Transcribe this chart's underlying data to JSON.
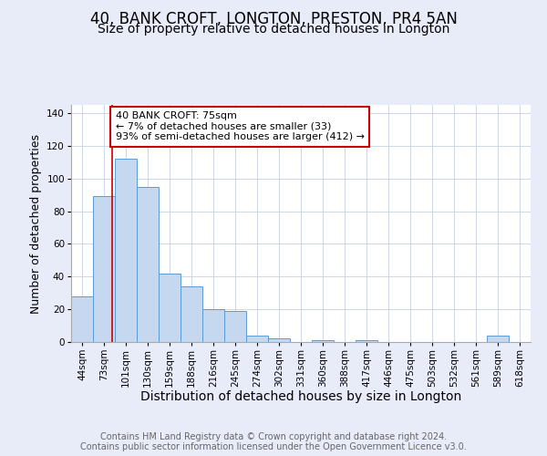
{
  "title1": "40, BANK CROFT, LONGTON, PRESTON, PR4 5AN",
  "title2": "Size of property relative to detached houses in Longton",
  "xlabel": "Distribution of detached houses by size in Longton",
  "ylabel": "Number of detached properties",
  "bins": [
    "44sqm",
    "73sqm",
    "101sqm",
    "130sqm",
    "159sqm",
    "188sqm",
    "216sqm",
    "245sqm",
    "274sqm",
    "302sqm",
    "331sqm",
    "360sqm",
    "388sqm",
    "417sqm",
    "446sqm",
    "475sqm",
    "503sqm",
    "532sqm",
    "561sqm",
    "589sqm",
    "618sqm"
  ],
  "values": [
    28,
    89,
    112,
    95,
    42,
    34,
    20,
    19,
    4,
    2,
    0,
    1,
    0,
    1,
    0,
    0,
    0,
    0,
    0,
    4,
    0
  ],
  "bar_color": "#c5d8f0",
  "bar_edge_color": "#5b9bd5",
  "bar_width": 1.0,
  "property_line_x": 1.38,
  "property_line_color": "#cc0000",
  "annotation_text": "40 BANK CROFT: 75sqm\n← 7% of detached houses are smaller (33)\n93% of semi-detached houses are larger (412) →",
  "annotation_box_color": "white",
  "annotation_box_edge": "#cc0000",
  "ylim": [
    0,
    145
  ],
  "yticks": [
    0,
    20,
    40,
    60,
    80,
    100,
    120,
    140
  ],
  "footer1": "Contains HM Land Registry data © Crown copyright and database right 2024.",
  "footer2": "Contains public sector information licensed under the Open Government Licence v3.0.",
  "bg_color": "#e8ecf8",
  "plot_bg_color": "#ffffff",
  "grid_color": "#c8d0e0",
  "title1_fontsize": 12,
  "title2_fontsize": 10,
  "xlabel_fontsize": 10,
  "ylabel_fontsize": 9,
  "tick_fontsize": 7.5,
  "annotation_fontsize": 8,
  "footer_fontsize": 7
}
